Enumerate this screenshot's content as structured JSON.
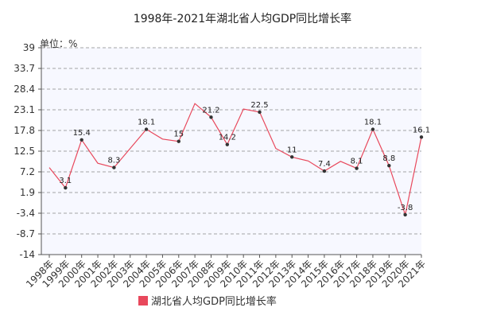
{
  "chart_data": {
    "type": "line",
    "title": "1998年-2021年湖北省人均GDP同比增长率",
    "unit_label": "单位：%",
    "x": [
      "1998年",
      "1999年",
      "2000年",
      "2001年",
      "2002年",
      "2003年",
      "2004年",
      "2005年",
      "2006年",
      "2007年",
      "2008年",
      "2009年",
      "2010年",
      "2011年",
      "2012年",
      "2013年",
      "2014年",
      "2015年",
      "2016年",
      "2017年",
      "2018年",
      "2019年",
      "2020年",
      "2021年"
    ],
    "series": [
      {
        "name": "湖北省人均GDP同比增长率",
        "color": "#e8485c",
        "values": [
          8.3,
          3.1,
          15.4,
          9.4,
          8.3,
          13.2,
          18.1,
          15.6,
          15,
          24.7,
          21.2,
          14.2,
          23.3,
          22.5,
          13.2,
          11,
          10,
          7.4,
          9.9,
          8.1,
          18.1,
          8.8,
          -3.8,
          16.1
        ]
      }
    ],
    "data_labels": [
      {
        "index": 1,
        "text": "3.1"
      },
      {
        "index": 2,
        "text": "15.4"
      },
      {
        "index": 4,
        "text": "8.3"
      },
      {
        "index": 6,
        "text": "18.1"
      },
      {
        "index": 8,
        "text": "15"
      },
      {
        "index": 10,
        "text": "21.2"
      },
      {
        "index": 11,
        "text": "14.2"
      },
      {
        "index": 13,
        "text": "22.5"
      },
      {
        "index": 15,
        "text": "11"
      },
      {
        "index": 17,
        "text": "7.4"
      },
      {
        "index": 19,
        "text": "8.1"
      },
      {
        "index": 20,
        "text": "18.1"
      },
      {
        "index": 21,
        "text": "8.8"
      },
      {
        "index": 22,
        "text": "-3.8"
      },
      {
        "index": 23,
        "text": "16.1"
      }
    ],
    "y_ticks": [
      -14,
      -8.7,
      -3.4,
      1.9,
      7.2,
      12.5,
      17.8,
      23.1,
      28.4,
      33.7,
      39
    ],
    "y_tick_labels": [
      "-14",
      "-8.7",
      "-3.4",
      "1.9",
      "7.2",
      "12.5",
      "17.8",
      "23.1",
      "28.4",
      "33.7",
      "39"
    ],
    "ylim": [
      -14,
      39
    ],
    "grid": true,
    "legend_position": "bottom-center",
    "plot_background": "#f7f8ff",
    "marker_color": "#333333"
  }
}
